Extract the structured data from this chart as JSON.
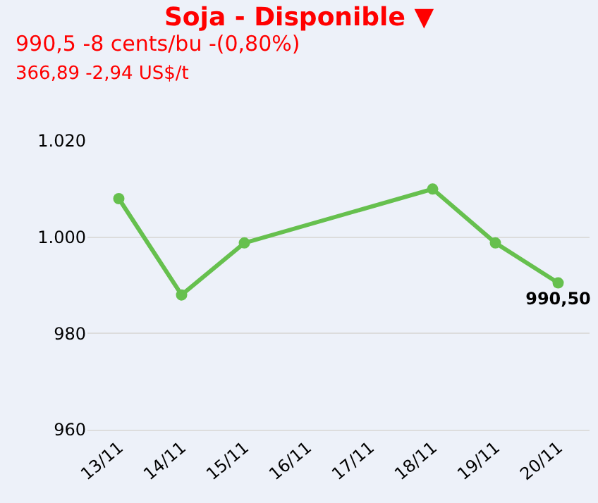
{
  "chart_data": {
    "type": "line",
    "title": "Soja - Disponible ▼",
    "subtitle": "990,5 -8 cents/bu -(0,80%)",
    "annotations": [
      "366,89 -2,94 US$/t"
    ],
    "categories": [
      "13/11",
      "14/11",
      "15/11",
      "16/11",
      "17/11",
      "18/11",
      "19/11",
      "20/11"
    ],
    "series": [
      {
        "color": "#66c04e",
        "values": [
          1008,
          988,
          998.8,
          null,
          null,
          1010,
          998.8,
          990.5
        ],
        "value_labels": [
          null,
          null,
          null,
          null,
          null,
          null,
          null,
          "990,50"
        ]
      }
    ],
    "ylim": [
      960,
      1020
    ],
    "yticks": [
      960,
      980,
      {
        "value": 1000,
        "label": "1.000"
      },
      {
        "value": 1020,
        "label": "1.020"
      }
    ],
    "grid": "y",
    "marker": "circle",
    "line_style": "solid"
  }
}
